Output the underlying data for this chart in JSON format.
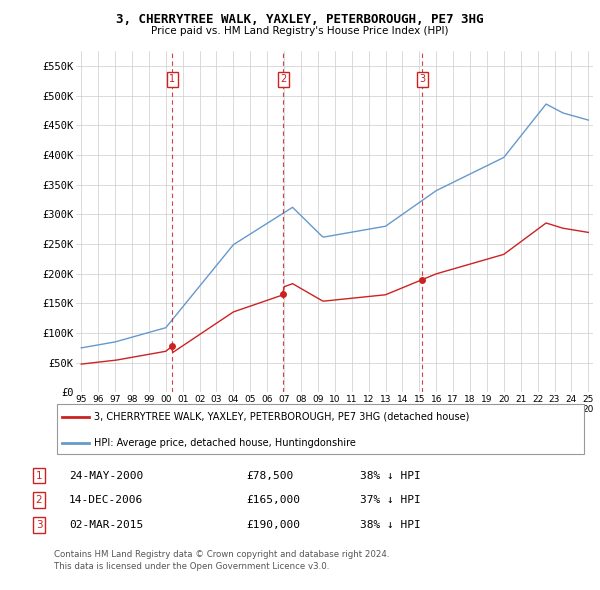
{
  "title": "3, CHERRYTREE WALK, YAXLEY, PETERBOROUGH, PE7 3HG",
  "subtitle": "Price paid vs. HM Land Registry's House Price Index (HPI)",
  "background_color": "#ffffff",
  "plot_bg_color": "#ffffff",
  "grid_color": "#cccccc",
  "ylim": [
    0,
    575000
  ],
  "yticks": [
    0,
    50000,
    100000,
    150000,
    200000,
    250000,
    300000,
    350000,
    400000,
    450000,
    500000,
    550000
  ],
  "ytick_labels": [
    "£0",
    "£50K",
    "£100K",
    "£150K",
    "£200K",
    "£250K",
    "£300K",
    "£350K",
    "£400K",
    "£450K",
    "£500K",
    "£550K"
  ],
  "xlim_start": 1994.7,
  "xlim_end": 2025.3,
  "xtick_years": [
    1995,
    1996,
    1997,
    1998,
    1999,
    2000,
    2001,
    2002,
    2003,
    2004,
    2005,
    2006,
    2007,
    2008,
    2009,
    2010,
    2011,
    2012,
    2013,
    2014,
    2015,
    2016,
    2017,
    2018,
    2019,
    2020,
    2021,
    2022,
    2023,
    2024,
    2025
  ],
  "red_line_color": "#cc2222",
  "blue_line_color": "#6699cc",
  "sale_marker_color": "#cc2222",
  "sale_vline_color": "#cc2222",
  "sale_box_color": "#cc2222",
  "sales": [
    {
      "num": 1,
      "year": 2000.38,
      "price": 78500,
      "label": "1"
    },
    {
      "num": 2,
      "year": 2006.96,
      "price": 165000,
      "label": "2"
    },
    {
      "num": 3,
      "year": 2015.17,
      "price": 190000,
      "label": "3"
    }
  ],
  "legend_red_label": "3, CHERRYTREE WALK, YAXLEY, PETERBOROUGH, PE7 3HG (detached house)",
  "legend_blue_label": "HPI: Average price, detached house, Huntingdonshire",
  "footer1": "Contains HM Land Registry data © Crown copyright and database right 2024.",
  "footer2": "This data is licensed under the Open Government Licence v3.0.",
  "table_rows": [
    {
      "num": "1",
      "date": "24-MAY-2000",
      "price": "£78,500",
      "pct": "38% ↓ HPI"
    },
    {
      "num": "2",
      "date": "14-DEC-2006",
      "price": "£165,000",
      "pct": "37% ↓ HPI"
    },
    {
      "num": "3",
      "date": "02-MAR-2015",
      "price": "£190,000",
      "pct": "38% ↓ HPI"
    }
  ]
}
